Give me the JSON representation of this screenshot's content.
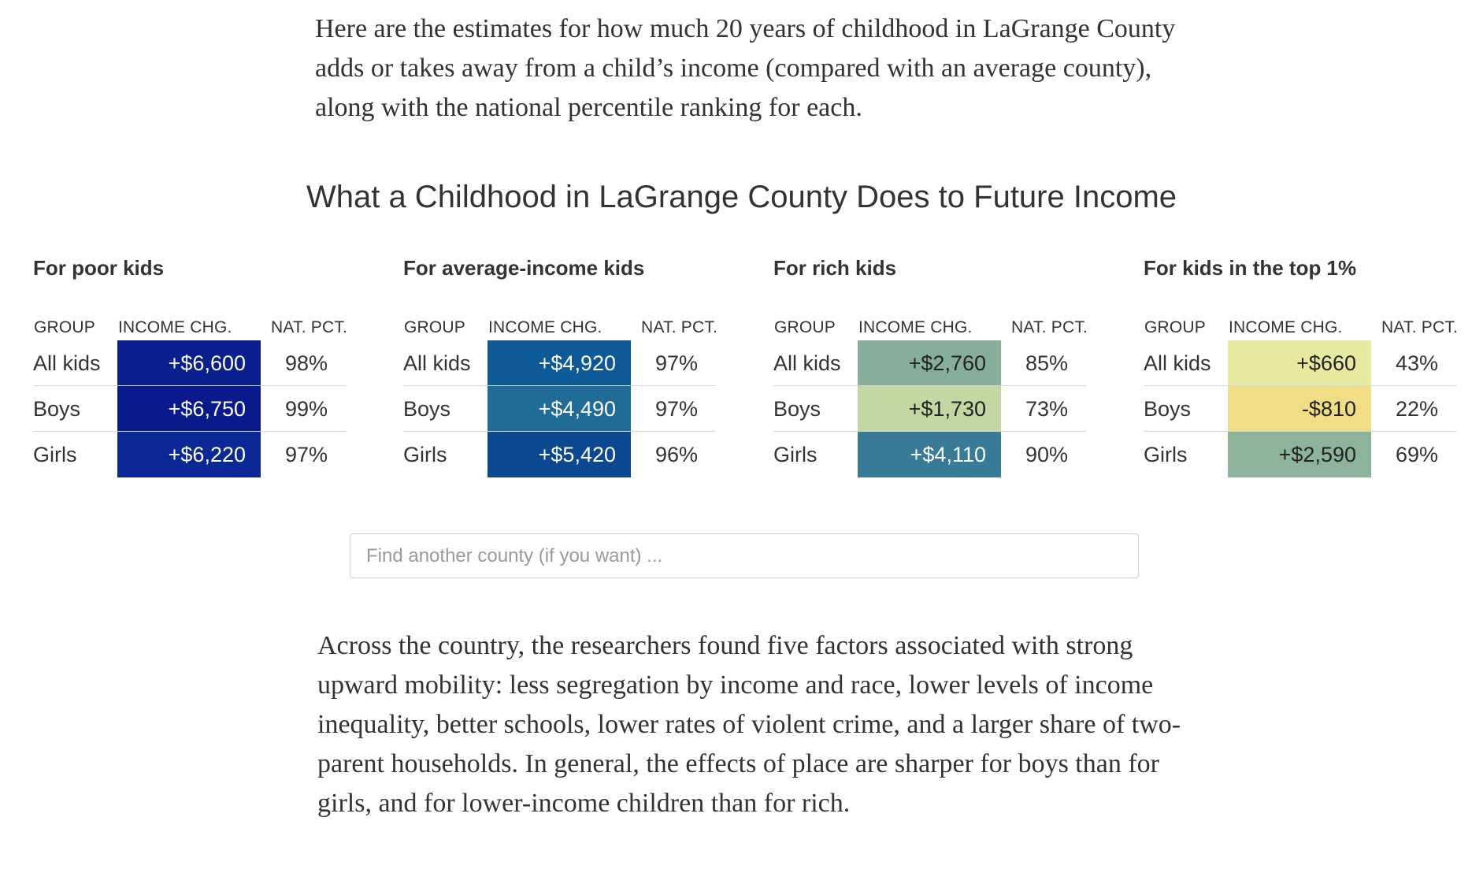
{
  "intro_text": "Here are the estimates for how much 20 years of childhood in LaGrange County adds or takes away from a child’s income (compared with an average county), along with the national percentile ranking for each.",
  "chart_title": "What a Childhood in LaGrange County Does to Future Income",
  "column_headers": {
    "group": "GROUP",
    "income": "INCOME CHG.",
    "pct": "NAT. PCT."
  },
  "tables": [
    {
      "title": "For poor kids",
      "rows": [
        {
          "group": "All kids",
          "income": "+$6,600",
          "pct": "98%",
          "bg": "#0b1f8f",
          "fg": "#ffffff"
        },
        {
          "group": "Boys",
          "income": "+$6,750",
          "pct": "99%",
          "bg": "#0b1a8a",
          "fg": "#ffffff"
        },
        {
          "group": "Girls",
          "income": "+$6,220",
          "pct": "97%",
          "bg": "#0c2896",
          "fg": "#ffffff"
        }
      ]
    },
    {
      "title": "For average-income kids",
      "rows": [
        {
          "group": "All kids",
          "income": "+$4,920",
          "pct": "97%",
          "bg": "#0d5a96",
          "fg": "#ffffff"
        },
        {
          "group": "Boys",
          "income": "+$4,490",
          "pct": "97%",
          "bg": "#1f6c99",
          "fg": "#ffffff"
        },
        {
          "group": "Girls",
          "income": "+$5,420",
          "pct": "96%",
          "bg": "#0b4890",
          "fg": "#ffffff"
        }
      ]
    },
    {
      "title": "For rich kids",
      "rows": [
        {
          "group": "All kids",
          "income": "+$2,760",
          "pct": "85%",
          "bg": "#87ae9a",
          "fg": "#222222"
        },
        {
          "group": "Boys",
          "income": "+$1,730",
          "pct": "73%",
          "bg": "#c2d7a1",
          "fg": "#222222"
        },
        {
          "group": "Girls",
          "income": "+$4,110",
          "pct": "90%",
          "bg": "#387b97",
          "fg": "#ffffff"
        }
      ]
    },
    {
      "title": "For kids in the top 1%",
      "rows": [
        {
          "group": "All kids",
          "income": "+$660",
          "pct": "43%",
          "bg": "#e5ea9e",
          "fg": "#222222"
        },
        {
          "group": "Boys",
          "income": "-$810",
          "pct": "22%",
          "bg": "#f1dd86",
          "fg": "#222222"
        },
        {
          "group": "Girls",
          "income": "+$2,590",
          "pct": "69%",
          "bg": "#8db49b",
          "fg": "#222222"
        }
      ]
    }
  ],
  "search": {
    "placeholder": "Find another county (if you want) ..."
  },
  "outro_text": "Across the country, the researchers found five factors associated with strong upward mobility: less segregation by income and race, lower levels of income inequality, better schools, lower rates of violent crime, and a larger share of two-parent households. In general, the effects of place are sharper for boys than for girls, and for lower-income children than for rich."
}
